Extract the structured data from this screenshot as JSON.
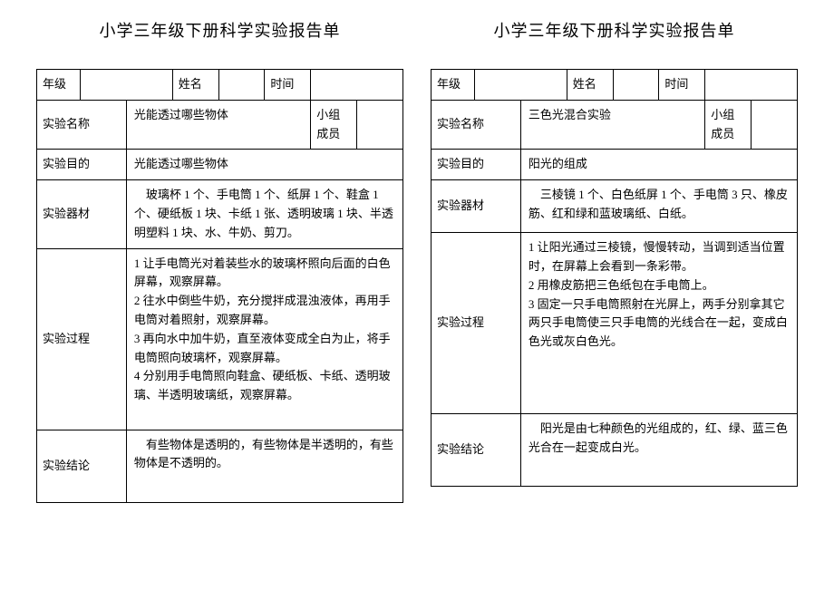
{
  "left": {
    "title": "小学三年级下册科学实验报告单",
    "header": {
      "gradeLabel": "年级",
      "gradeValue": "",
      "nameLabel": "姓名",
      "nameValue": "",
      "timeLabel": "时间",
      "timeValue": ""
    },
    "nameRow": {
      "label": "实验名称",
      "content": "光能透过哪些物体",
      "memberLabel": "小组成员",
      "memberValue": ""
    },
    "purposeRow": {
      "label": "实验目的",
      "content": "光能透过哪些物体"
    },
    "equipmentRow": {
      "label": "实验器材",
      "content": "　玻璃杯 1 个、手电筒 1 个、纸屏 1 个、鞋盒 1 个、硬纸板 1 块、卡纸 1 张、透明玻璃 1 块、半透明塑料 1 块、水、牛奶、剪刀。"
    },
    "processRow": {
      "label": "实验过程",
      "content": "1 让手电筒光对着装些水的玻璃杯照向后面的白色屏幕，观察屏幕。\n2 往水中倒些牛奶，充分搅拌成混浊液体，再用手电筒对着照射，观察屏幕。\n3 再向水中加牛奶，直至液体变成全白为止，将手电筒照向玻璃杯，观察屏幕。\n4 分别用手电筒照向鞋盒、硬纸板、卡纸、透明玻璃、半透明玻璃纸，观察屏幕。"
    },
    "conclusionRow": {
      "label": "实验结论",
      "content": "　有些物体是透明的，有些物体是半透明的，有些物体是不透明的。"
    }
  },
  "right": {
    "title": "小学三年级下册科学实验报告单",
    "header": {
      "gradeLabel": "年级",
      "gradeValue": "",
      "nameLabel": "姓名",
      "nameValue": "",
      "timeLabel": "时间",
      "timeValue": ""
    },
    "nameRow": {
      "label": "实验名称",
      "content": "三色光混合实验",
      "memberLabel": "小组成员",
      "memberValue": ""
    },
    "purposeRow": {
      "label": "实验目的",
      "content": "阳光的组成"
    },
    "equipmentRow": {
      "label": "实验器材",
      "content": "　三棱镜 1 个、白色纸屏 1 个、手电筒 3 只、橡皮筋、红和绿和蓝玻璃纸、白纸。"
    },
    "processRow": {
      "label": "实验过程",
      "content": "1 让阳光通过三棱镜，慢慢转动，当调到适当位置时，在屏幕上会看到一条彩带。\n2 用橡皮筋把三色纸包在手电筒上。\n3 固定一只手电筒照射在光屏上，两手分别拿其它两只手电筒使三只手电筒的光线合在一起，变成白色光或灰白色光。"
    },
    "conclusionRow": {
      "label": "实验结论",
      "content": "　阳光是由七种颜色的光组成的，红、绿、蓝三色光合在一起变成白光。"
    }
  }
}
